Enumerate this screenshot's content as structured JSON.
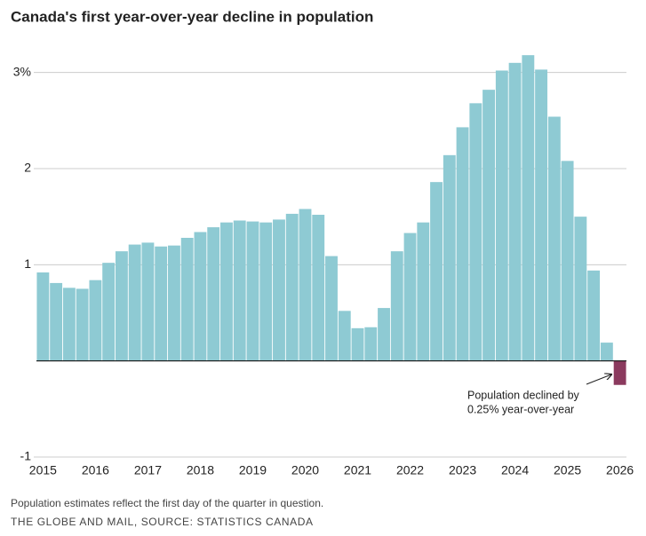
{
  "chart_data": {
    "type": "bar",
    "title": "Canada's first year-over-year decline in population",
    "categories": [
      "2015",
      null,
      null,
      null,
      "2016",
      null,
      null,
      null,
      "2017",
      null,
      null,
      null,
      "2018",
      null,
      null,
      null,
      "2019",
      null,
      null,
      null,
      "2020",
      null,
      null,
      null,
      "2021",
      null,
      null,
      null,
      "2022",
      null,
      null,
      null,
      "2023",
      null,
      null,
      null,
      "2024",
      null,
      null,
      null,
      "2025",
      null,
      null,
      null,
      "2026"
    ],
    "values": [
      0.92,
      0.81,
      0.76,
      0.75,
      0.84,
      1.02,
      1.14,
      1.21,
      1.23,
      1.19,
      1.2,
      1.28,
      1.34,
      1.39,
      1.44,
      1.46,
      1.45,
      1.44,
      1.47,
      1.53,
      1.58,
      1.52,
      1.09,
      0.52,
      0.34,
      0.35,
      0.55,
      1.14,
      1.33,
      1.44,
      1.86,
      2.14,
      2.43,
      2.68,
      2.82,
      3.02,
      3.1,
      3.18,
      3.03,
      2.54,
      2.08,
      1.5,
      0.94,
      0.19,
      -0.25
    ],
    "color": "#8ecad3",
    "negative_color": "#8b3a5e",
    "ylim": [
      -1,
      3.2
    ],
    "yticks": [
      -1,
      1,
      2,
      {
        "value": 3,
        "label": "3%"
      }
    ],
    "grid": true,
    "annotation": [
      "Population declined by",
      "0.25% year-over-year"
    ],
    "note": "Population estimates reflect the first day of the quarter in question.",
    "source": "THE GLOBE AND MAIL, SOURCE: STATISTICS CANADA"
  }
}
